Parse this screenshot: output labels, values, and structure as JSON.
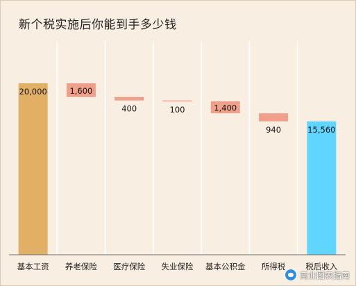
{
  "title": "新个税实施后你能到手多少钱",
  "watermark": {
    "text": "商业图表指南",
    "icon": "wechat-icon"
  },
  "colors": {
    "total": "#e2b064",
    "deduction": "#f0a08a",
    "result": "#5fd5ff",
    "divider": "#ffffff",
    "baseline": "#6b6b6b",
    "background": "#f8efe2"
  },
  "chart_data": {
    "type": "bar",
    "subtype": "waterfall",
    "categories": [
      "基本工资",
      "养老保险",
      "医疗保险",
      "失业保险",
      "基本公积金",
      "所得税",
      "税后收入"
    ],
    "values": [
      20000,
      1600,
      400,
      100,
      1400,
      940,
      15560
    ],
    "labels": [
      "20,000",
      "1,600",
      "400",
      "100",
      "1,400",
      "940",
      "15,560"
    ],
    "kinds": [
      "total",
      "deduction",
      "deduction",
      "deduction",
      "deduction",
      "deduction",
      "result"
    ],
    "ylim": [
      0,
      20000
    ],
    "grid": false,
    "legend": false
  }
}
